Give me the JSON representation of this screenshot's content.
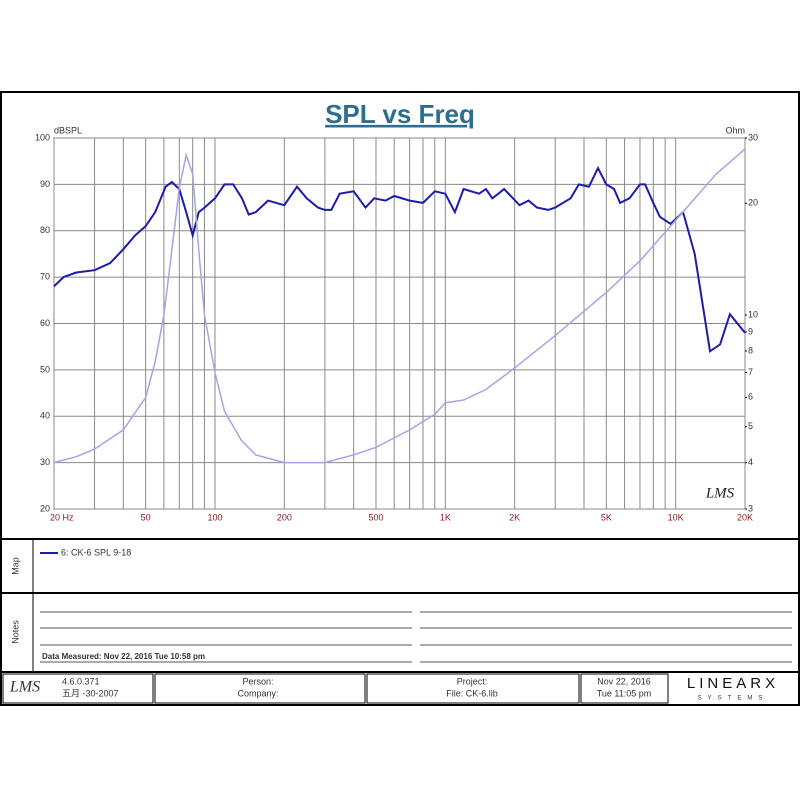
{
  "chart_data": {
    "type": "line",
    "title": "SPL vs Freq",
    "ylabel": "dBSPL",
    "y2label": "Ohm",
    "watermark": "LMS",
    "xscale": "log",
    "y2scale": "log",
    "grid": true,
    "xlim": [
      20,
      20000
    ],
    "xticks": [
      {
        "value": 20,
        "label": "20 Hz"
      },
      50,
      100,
      200,
      500,
      {
        "value": 1000,
        "label": "1K"
      },
      {
        "value": 2000,
        "label": "2K"
      },
      {
        "value": 5000,
        "label": "5K"
      },
      {
        "value": 10000,
        "label": "10K"
      },
      {
        "value": 20000,
        "label": "20K"
      }
    ],
    "xgrid": [
      30,
      40,
      60,
      70,
      80,
      90,
      300,
      400,
      600,
      700,
      800,
      900,
      3000,
      4000,
      6000,
      7000,
      8000,
      9000
    ],
    "ylim": [
      20,
      100
    ],
    "yticks": [
      20,
      30,
      40,
      50,
      60,
      70,
      80,
      90,
      100
    ],
    "y2lim": [
      3,
      30
    ],
    "y2ticks": [
      3,
      4,
      5,
      6,
      7,
      8,
      9,
      10,
      20,
      30
    ],
    "series": [
      {
        "name": "6: CK-6  SPL  9-18",
        "color": "#1c1caa",
        "x": [
          20,
          22,
          25,
          30,
          35,
          40,
          45,
          50,
          55,
          61,
          65,
          70,
          75,
          80,
          85,
          90,
          100,
          110,
          120,
          131,
          140,
          150,
          170,
          200,
          227,
          250,
          280,
          300,
          320,
          348,
          400,
          450,
          491,
          550,
          600,
          700,
          800,
          900,
          1000,
          1100,
          1200,
          1400,
          1500,
          1600,
          1700,
          1800,
          2100,
          2300,
          2500,
          2800,
          3000,
          3500,
          3800,
          4200,
          4600,
          5000,
          5400,
          5740,
          6300,
          7000,
          7370,
          8000,
          8540,
          9500,
          10770,
          12100,
          14100,
          15600,
          17200,
          20000
        ],
        "values": [
          68,
          70,
          71,
          71.5,
          73,
          76,
          79,
          81,
          84,
          89.5,
          90.5,
          89,
          84,
          79,
          84,
          85,
          87,
          90,
          90,
          87,
          83.5,
          84,
          86.5,
          85.5,
          89.5,
          87,
          85,
          84.5,
          84.5,
          88,
          88.5,
          85,
          87,
          86.5,
          87.5,
          86.5,
          86,
          88.5,
          88,
          84,
          89,
          88,
          89,
          87,
          88,
          89,
          85.5,
          86.5,
          85,
          84.5,
          85,
          87,
          90,
          89.5,
          93.5,
          90,
          89,
          86,
          87,
          90,
          90,
          86,
          83,
          81.5,
          84,
          75,
          54,
          55.5,
          62,
          58
        ]
      },
      {
        "color": "#a4a4e4",
        "axis": "y2",
        "x": [
          20,
          25,
          30,
          40,
          50,
          55,
          60,
          65,
          70,
          75,
          80,
          85,
          90,
          100,
          110,
          130,
          150,
          200,
          300,
          400,
          500,
          700,
          900,
          1000,
          1200,
          1500,
          2000,
          3000,
          5000,
          7000,
          10000,
          15000,
          20000
        ],
        "values": [
          4.0,
          4.15,
          4.35,
          4.9,
          6.0,
          7.5,
          10,
          15,
          22,
          27,
          24,
          15,
          10,
          7,
          5.5,
          4.6,
          4.2,
          4.0,
          4.0,
          4.2,
          4.4,
          4.9,
          5.4,
          5.8,
          5.9,
          6.3,
          7.2,
          8.8,
          11.5,
          14,
          18,
          24,
          28
        ]
      }
    ]
  },
  "map": {
    "label": "Map"
  },
  "notes": {
    "label": "Notes",
    "text": "Data Measured: Nov 22, 2016  Tue 10:58 pm"
  },
  "footer": {
    "logo": "LMS",
    "version": "4.6.0.371",
    "date": "五月 -30-2007",
    "person": "Person:",
    "company": "Company:",
    "project": "Project:",
    "file": "File: CK-6.lib",
    "date2": "Nov 22, 2016",
    "time": "Tue 11:05 pm",
    "brand": "LINEARX",
    "brand_sub": "SYSTEMS"
  }
}
